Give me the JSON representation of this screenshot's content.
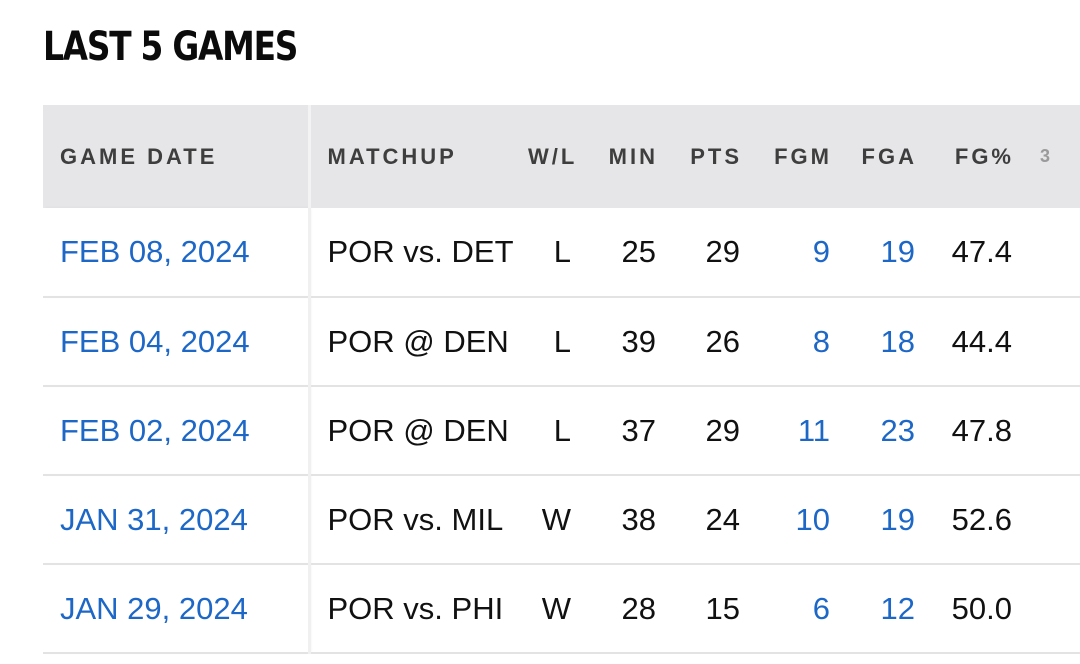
{
  "section": {
    "title": "LAST 5 GAMES"
  },
  "table": {
    "headers": {
      "date": "GAME DATE",
      "matchup": "MATCHUP",
      "wl": "W/L",
      "min": "MIN",
      "pts": "PTS",
      "fgm": "FGM",
      "fga": "FGA",
      "fgp": "FG%",
      "more": "3"
    },
    "rows": [
      {
        "date": "FEB 08, 2024",
        "matchup": "POR vs. DET",
        "wl": "L",
        "min": "25",
        "pts": "29",
        "fgm": "9",
        "fga": "19",
        "fgp": "47.4"
      },
      {
        "date": "FEB 04, 2024",
        "matchup": "POR @ DEN",
        "wl": "L",
        "min": "39",
        "pts": "26",
        "fgm": "8",
        "fga": "18",
        "fgp": "44.4"
      },
      {
        "date": "FEB 02, 2024",
        "matchup": "POR @ DEN",
        "wl": "L",
        "min": "37",
        "pts": "29",
        "fgm": "11",
        "fga": "23",
        "fgp": "47.8"
      },
      {
        "date": "JAN 31, 2024",
        "matchup": "POR vs. MIL",
        "wl": "W",
        "min": "38",
        "pts": "24",
        "fgm": "10",
        "fga": "19",
        "fgp": "52.6"
      },
      {
        "date": "JAN 29, 2024",
        "matchup": "POR vs. PHI",
        "wl": "W",
        "min": "28",
        "pts": "15",
        "fgm": "6",
        "fga": "12",
        "fgp": "50.0"
      }
    ]
  },
  "colors": {
    "link": "#1d67c7",
    "header_bg": "#e6e6e8",
    "text": "#111111"
  }
}
